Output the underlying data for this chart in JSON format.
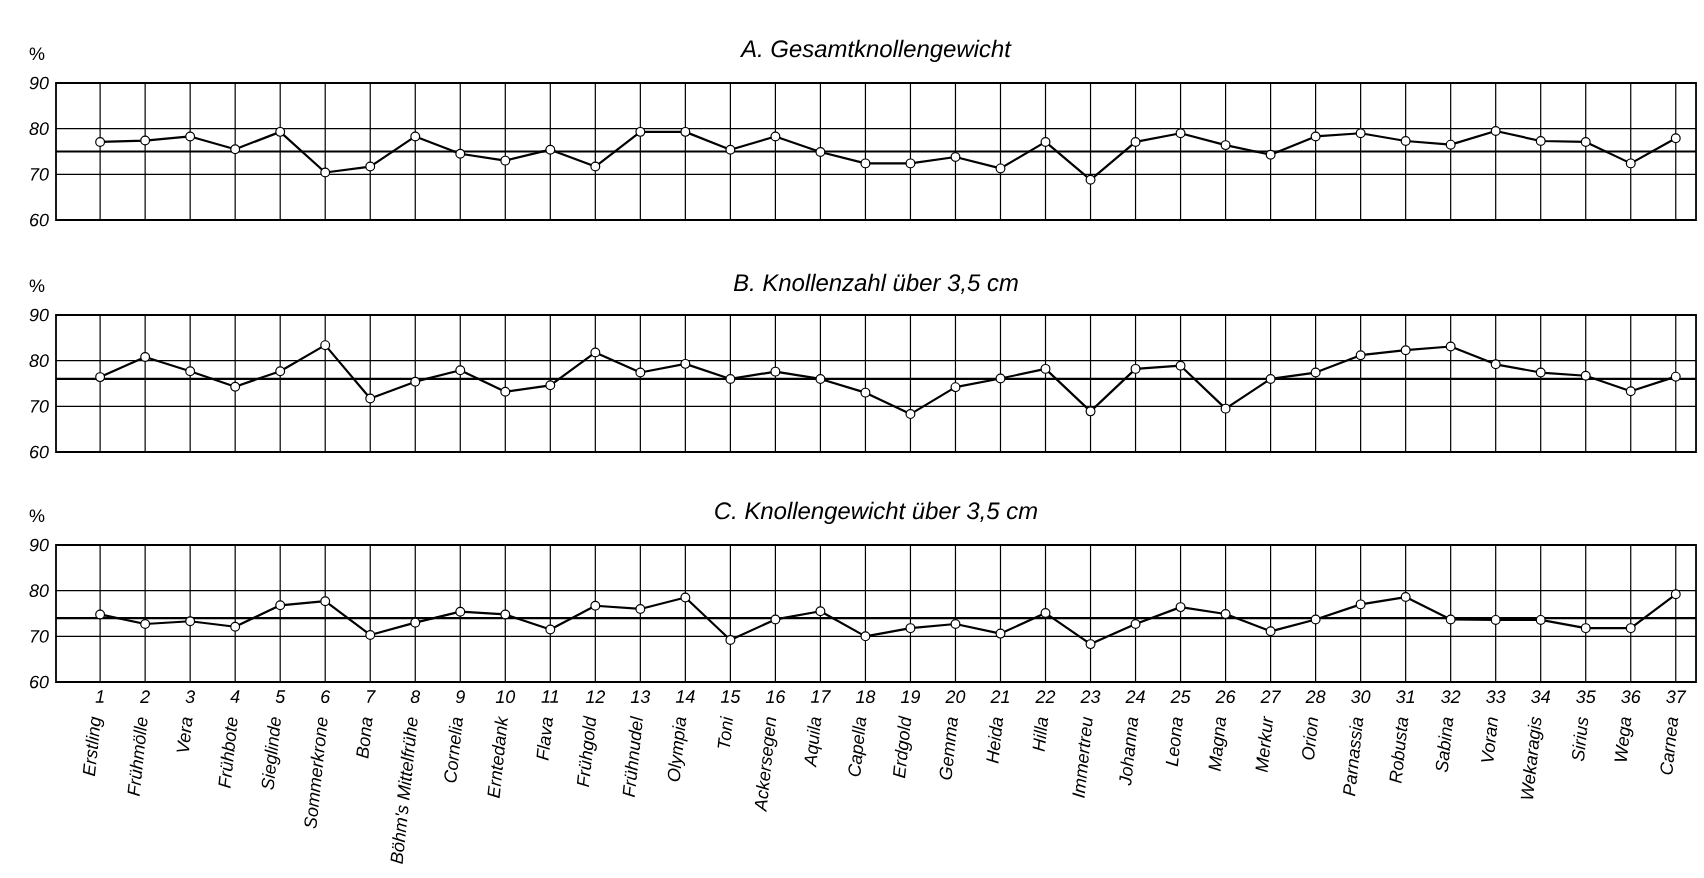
{
  "chart_data": [
    {
      "type": "line",
      "title": "A. Gesamtknollengewicht",
      "ylabel": "%",
      "categories": [
        null,
        null,
        null,
        null,
        null,
        null,
        null,
        null,
        null,
        null,
        null,
        null,
        null,
        null,
        null,
        null,
        null,
        null,
        null,
        null,
        null,
        null,
        null,
        null,
        null,
        null,
        null,
        null,
        null,
        null,
        null,
        null,
        null,
        null,
        null,
        null
      ],
      "series": [
        {
          "color": "#000000",
          "values": [
            77.1,
            77.4,
            78.3,
            75.5,
            79.3,
            70.4,
            71.7,
            78.3,
            74.5,
            73.0,
            75.4,
            71.7,
            79.3,
            79.3,
            75.4,
            78.3,
            74.9,
            72.4,
            72.4,
            73.8,
            71.3,
            77.1,
            68.8,
            77.1,
            79.0,
            76.4,
            74.3,
            78.3,
            79.0,
            77.3,
            76.5,
            79.5,
            77.3,
            77.1,
            72.4,
            77.9
          ]
        }
      ],
      "ylim": [
        60,
        90
      ],
      "yticks": [
        60,
        70,
        80,
        90
      ],
      "grid": true,
      "marker": "circle",
      "line_style": "solid",
      "tick_labels": "y",
      "ref_lines": [
        {
          "axis": "y",
          "value": 75,
          "color": "#000000"
        }
      ]
    },
    {
      "type": "line",
      "title": "B. Knollenzahl über 3,5 cm",
      "ylabel": "%",
      "categories": [
        null,
        null,
        null,
        null,
        null,
        null,
        null,
        null,
        null,
        null,
        null,
        null,
        null,
        null,
        null,
        null,
        null,
        null,
        null,
        null,
        null,
        null,
        null,
        null,
        null,
        null,
        null,
        null,
        null,
        null,
        null,
        null,
        null,
        null,
        null,
        null
      ],
      "series": [
        {
          "color": "#000000",
          "values": [
            76.4,
            80.8,
            77.7,
            74.3,
            77.7,
            83.4,
            71.7,
            75.4,
            77.9,
            73.2,
            74.6,
            81.8,
            77.4,
            79.3,
            76.0,
            77.6,
            76.0,
            73.0,
            68.3,
            74.2,
            76.1,
            78.2,
            68.9,
            78.2,
            78.9,
            69.5,
            76.0,
            77.4,
            81.2,
            82.3,
            83.1,
            79.2,
            77.4,
            76.7,
            73.3,
            76.5
          ]
        }
      ],
      "ylim": [
        60,
        90
      ],
      "yticks": [
        60,
        70,
        80,
        90
      ],
      "grid": true,
      "marker": "circle",
      "line_style": "solid",
      "tick_labels": "y",
      "ref_lines": [
        {
          "axis": "y",
          "value": 76,
          "color": "#000000"
        }
      ]
    },
    {
      "type": "line",
      "title": "C. Knollengewicht über 3,5 cm",
      "ylabel": "%",
      "categories": [
        "Erstling",
        "Frühmölle",
        "Vera",
        "Frühbote",
        "Sieglinde",
        "Sommerkrone",
        "Bona",
        "Böhm's Mittelfrühe",
        "Cornelia",
        "Erntedank",
        "Flava",
        "Frühgold",
        "Frühnudel",
        "Olympia",
        "Toni",
        "Ackersegen",
        "Aquila",
        "Capella",
        "Erdgold",
        "Gemma",
        "Heida",
        "Hilla",
        "Immertreu",
        "Johanna",
        "Leona",
        "Magna",
        "Merkur",
        "Orion",
        "Parnassia",
        "Robusta",
        "Sabina",
        "Voran",
        "Wekaragis",
        "Sirius",
        "Wega",
        "Carnea"
      ],
      "series": [
        {
          "color": "#000000",
          "values": [
            74.8,
            72.7,
            73.3,
            72.1,
            76.8,
            77.7,
            70.3,
            73.0,
            75.4,
            74.8,
            71.5,
            76.7,
            76.0,
            78.5,
            69.2,
            73.7,
            75.5,
            70.0,
            71.8,
            72.7,
            70.6,
            75.1,
            68.3,
            72.7,
            76.4,
            74.9,
            71.1,
            73.7,
            77.0,
            78.6,
            73.7,
            73.6,
            73.6,
            71.8,
            71.8,
            79.2
          ]
        }
      ],
      "ylim": [
        60,
        90
      ],
      "yticks": [
        60,
        70,
        80,
        90
      ],
      "grid": true,
      "marker": "circle",
      "line_style": "solid",
      "ref_lines": [
        {
          "axis": "y",
          "value": 74,
          "color": "#000000"
        }
      ],
      "annotations": [
        "1",
        "2",
        "3",
        "4",
        "5",
        "6",
        "7",
        "8",
        "9",
        "10",
        "11",
        "12",
        "13",
        "14",
        "15",
        "16",
        "17",
        "18",
        "19",
        "20",
        "21",
        "22",
        "23",
        "24",
        "25",
        "26",
        "27",
        "28",
        "30",
        "31",
        "32",
        "33",
        "34",
        "35",
        "36",
        "37"
      ]
    }
  ]
}
